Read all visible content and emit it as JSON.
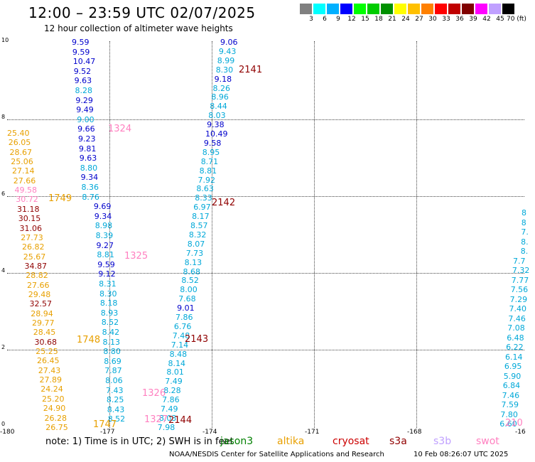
{
  "title": "12:00 – 23:59 UTC 02/07/2025",
  "subtitle": "12 hour collection of altimeter wave heights",
  "legend": {
    "labels": [
      "3",
      "6",
      "9",
      "12",
      "15",
      "18",
      "21",
      "24",
      "27",
      "30",
      "33",
      "36",
      "39",
      "42",
      "45",
      "70 (ft)"
    ],
    "colors": [
      "#808080",
      "#00ffff",
      "#00b0ff",
      "#0000ff",
      "#00ff00",
      "#00cc00",
      "#009000",
      "#ffff00",
      "#ffc000",
      "#ff8000",
      "#ff0000",
      "#c00000",
      "#800000",
      "#ff00ff",
      "#c0a0ff",
      "#000000"
    ]
  },
  "axes": {
    "y_ticks": [
      "10",
      "8",
      "6",
      "4",
      "2",
      "0"
    ],
    "x_ticks": [
      "-180",
      "-177",
      "-174",
      "-171",
      "-168",
      "-16"
    ]
  },
  "colors": {
    "navy": "#0000cc",
    "cyan": "#00a8d8",
    "orange": "#e8a000",
    "darkred": "#900000",
    "red": "#cc0000",
    "pink": "#ff80c0",
    "green": "#008000"
  },
  "tracks": [
    {
      "id": "t1324",
      "color": "navy",
      "values": [
        [
          "9.59",
          "navy"
        ],
        [
          "9.59",
          "navy"
        ],
        [
          "10.47",
          "navy"
        ],
        [
          "9.52",
          "navy"
        ],
        [
          "9.63",
          "navy"
        ],
        [
          "8.28",
          "cyan"
        ],
        [
          "9.29",
          "navy"
        ],
        [
          "9.49",
          "navy"
        ],
        [
          "9.00",
          "cyan"
        ],
        [
          "9.66",
          "navy"
        ],
        [
          "9.23",
          "navy"
        ],
        [
          "9.81",
          "navy"
        ],
        [
          "9.63",
          "navy"
        ],
        [
          "8.80",
          "cyan"
        ],
        [
          "9.34",
          "navy"
        ],
        [
          "8.36",
          "cyan"
        ],
        [
          "8.76",
          "cyan"
        ],
        [
          "9.69",
          "navy"
        ],
        [
          "9.34",
          "navy"
        ],
        [
          "8.98",
          "cyan"
        ],
        [
          "8.39",
          "cyan"
        ],
        [
          "9.27",
          "navy"
        ],
        [
          "8.81",
          "cyan"
        ],
        [
          "9.59",
          "navy"
        ],
        [
          "9.12",
          "navy"
        ],
        [
          "8.31",
          "cyan"
        ],
        [
          "8.30",
          "cyan"
        ],
        [
          "8.18",
          "cyan"
        ],
        [
          "8.93",
          "cyan"
        ],
        [
          "8.52",
          "cyan"
        ],
        [
          "8.42",
          "cyan"
        ],
        [
          "8.13",
          "cyan"
        ],
        [
          "8.80",
          "cyan"
        ],
        [
          "8.69",
          "cyan"
        ],
        [
          "7.87",
          "cyan"
        ],
        [
          "8.06",
          "cyan"
        ],
        [
          "7.43",
          "cyan"
        ],
        [
          "8.25",
          "cyan"
        ],
        [
          "8.43",
          "cyan"
        ],
        [
          "8.52",
          "cyan"
        ]
      ]
    },
    {
      "id": "t2141",
      "color": "cyan",
      "values": [
        [
          "9.06",
          "navy"
        ],
        [
          "9.43",
          "cyan"
        ],
        [
          "8.99",
          "cyan"
        ],
        [
          "8.30",
          "cyan"
        ],
        [
          "9.18",
          "navy"
        ],
        [
          "8.26",
          "cyan"
        ],
        [
          "8.96",
          "cyan"
        ],
        [
          "8.44",
          "cyan"
        ],
        [
          "8.03",
          "cyan"
        ],
        [
          "9.38",
          "navy"
        ],
        [
          "10.49",
          "navy"
        ],
        [
          "9.58",
          "navy"
        ],
        [
          "8.95",
          "cyan"
        ],
        [
          "8.71",
          "cyan"
        ],
        [
          "8.81",
          "cyan"
        ],
        [
          "7.92",
          "cyan"
        ],
        [
          "8.63",
          "cyan"
        ],
        [
          "8.33",
          "cyan"
        ],
        [
          "6.97",
          "cyan"
        ],
        [
          "8.17",
          "cyan"
        ],
        [
          "8.57",
          "cyan"
        ],
        [
          "8.32",
          "cyan"
        ],
        [
          "8.07",
          "cyan"
        ],
        [
          "7.73",
          "cyan"
        ],
        [
          "8.13",
          "cyan"
        ],
        [
          "8.68",
          "cyan"
        ],
        [
          "8.52",
          "cyan"
        ],
        [
          "8.00",
          "cyan"
        ],
        [
          "7.68",
          "cyan"
        ],
        [
          "9.01",
          "navy"
        ],
        [
          "7.86",
          "cyan"
        ],
        [
          "6.76",
          "cyan"
        ],
        [
          "7.48",
          "cyan"
        ],
        [
          "7.14",
          "cyan"
        ],
        [
          "8.48",
          "cyan"
        ],
        [
          "8.14",
          "cyan"
        ],
        [
          "8.01",
          "cyan"
        ],
        [
          "7.49",
          "cyan"
        ],
        [
          "8.28",
          "cyan"
        ],
        [
          "7.86",
          "cyan"
        ],
        [
          "7.49",
          "cyan"
        ],
        [
          "8.03",
          "cyan"
        ],
        [
          "7.98",
          "cyan"
        ]
      ]
    },
    {
      "id": "t1749",
      "color": "orange",
      "values": [
        [
          "25.40",
          "orange"
        ],
        [
          "26.05",
          "orange"
        ],
        [
          "28.67",
          "orange"
        ],
        [
          "25.06",
          "orange"
        ],
        [
          "27.14",
          "orange"
        ],
        [
          "27.66",
          "orange"
        ],
        [
          "49.58",
          "pink"
        ],
        [
          "30.72",
          "pink"
        ],
        [
          "31.18",
          "darkred"
        ],
        [
          "30.15",
          "darkred"
        ],
        [
          "31.06",
          "darkred"
        ],
        [
          "27.73",
          "orange"
        ],
        [
          "26.82",
          "orange"
        ],
        [
          "25.67",
          "orange"
        ],
        [
          "34.87",
          "darkred"
        ],
        [
          "28.82",
          "orange"
        ],
        [
          "27.66",
          "orange"
        ],
        [
          "29.48",
          "orange"
        ],
        [
          "32.57",
          "darkred"
        ],
        [
          "28.94",
          "orange"
        ],
        [
          "29.77",
          "orange"
        ],
        [
          "28.45",
          "orange"
        ],
        [
          "30.68",
          "darkred"
        ],
        [
          "25.25",
          "orange"
        ],
        [
          "26.45",
          "orange"
        ],
        [
          "27.43",
          "orange"
        ],
        [
          "27.89",
          "orange"
        ],
        [
          "24.24",
          "orange"
        ],
        [
          "25.20",
          "orange"
        ],
        [
          "24.90",
          "orange"
        ],
        [
          "26.28",
          "orange"
        ],
        [
          "26.75",
          "orange"
        ]
      ]
    },
    {
      "id": "t2104",
      "color": "cyan",
      "values": [
        [
          "8",
          "cyan"
        ],
        [
          "8",
          "cyan"
        ],
        [
          "7.",
          "cyan"
        ],
        [
          "8.",
          "cyan"
        ],
        [
          "8.",
          "cyan"
        ],
        [
          "7.7",
          "cyan"
        ],
        [
          "7.32",
          "cyan"
        ],
        [
          "7.77",
          "cyan"
        ],
        [
          "7.56",
          "cyan"
        ],
        [
          "7.29",
          "cyan"
        ],
        [
          "7.40",
          "cyan"
        ],
        [
          "7.46",
          "cyan"
        ],
        [
          "7.08",
          "cyan"
        ],
        [
          "6.48",
          "cyan"
        ],
        [
          "6.22",
          "cyan"
        ],
        [
          "6.14",
          "cyan"
        ],
        [
          "6.95",
          "cyan"
        ],
        [
          "5.90",
          "cyan"
        ],
        [
          "6.84",
          "cyan"
        ],
        [
          "7.46",
          "cyan"
        ],
        [
          "7.59",
          "cyan"
        ],
        [
          "7.80",
          "cyan"
        ],
        [
          "6.60",
          "cyan"
        ]
      ]
    }
  ],
  "pass_labels": [
    {
      "text": "2141",
      "color": "darkred"
    },
    {
      "text": "1324",
      "color": "pink"
    },
    {
      "text": "1749",
      "color": "orange"
    },
    {
      "text": "2142",
      "color": "darkred"
    },
    {
      "text": "1325",
      "color": "pink"
    },
    {
      "text": "1748",
      "color": "orange"
    },
    {
      "text": "2143",
      "color": "darkred"
    },
    {
      "text": "1326",
      "color": "pink"
    },
    {
      "text": "1327",
      "color": "pink"
    },
    {
      "text": "2144",
      "color": "darkred"
    },
    {
      "text": "1747",
      "color": "orange"
    },
    {
      "text": "210",
      "color": "pink"
    }
  ],
  "note": "note:  1) Time is in UTC; 2) SWH is in feet",
  "satellites": [
    {
      "name": "jason3",
      "color": "green"
    },
    {
      "name": "altika",
      "color": "orange"
    },
    {
      "name": "cryosat",
      "color": "red"
    },
    {
      "name": "s3a",
      "color": "darkred"
    },
    {
      "name": "s3b",
      "color": "#c0a0ff"
    },
    {
      "name": "swot",
      "color": "pink"
    }
  ],
  "footer_left": "NOAA/NESDIS Center for Satellite Applications and Research",
  "footer_right": "10 Feb 08:26:07 UTC 2025"
}
